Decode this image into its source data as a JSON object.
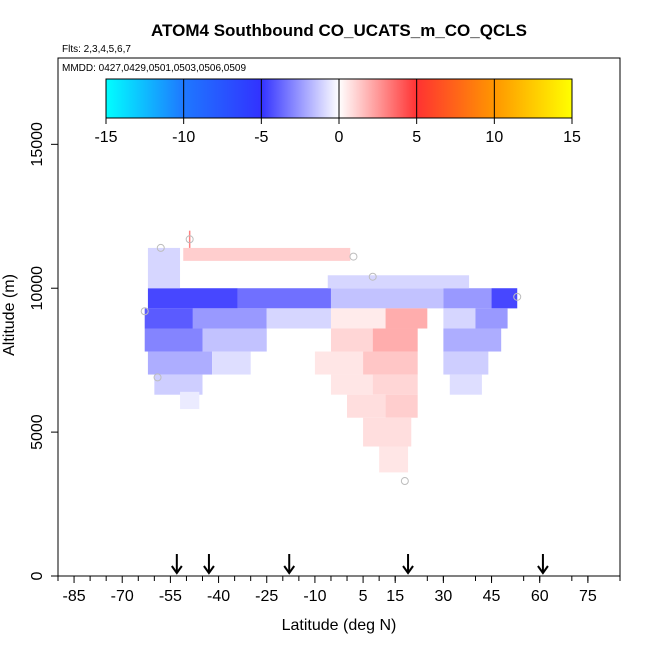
{
  "chart_data": {
    "type": "heatmap",
    "title": "ATOM4 Southbound CO_UCATS_m_CO_QCLS",
    "flights_label": "Flts: 2,3,4,5,6,7",
    "dates_label": "MMDD: 0427,0429,0501,0503,0506,0509",
    "xlabel": "Latitude (deg N)",
    "ylabel": "Altitude (m)",
    "xlim": [
      -90,
      85
    ],
    "ylim": [
      0,
      18000
    ],
    "x_ticks": [
      -85,
      -70,
      -55,
      -40,
      -25,
      -10,
      5,
      15,
      30,
      45,
      60,
      75
    ],
    "x_tick_labels": [
      "-85",
      "-70",
      "-55",
      "-40",
      "-25",
      "-10",
      "5",
      "15",
      "30",
      "45",
      "60",
      "75"
    ],
    "x_minor_step": 5,
    "y_ticks": [
      0,
      5000,
      10000,
      15000
    ],
    "y_tick_labels": [
      "0",
      "5000",
      "10000",
      "15000"
    ],
    "colorbar": {
      "min": -15,
      "max": 15,
      "ticks": [
        -15,
        -10,
        -5,
        0,
        5,
        10,
        15
      ],
      "tick_labels": [
        "-15",
        "-10",
        "-5",
        "0",
        "5",
        "10",
        "15"
      ],
      "color_stops": [
        {
          "value": -15,
          "color": "#00ffff"
        },
        {
          "value": -10,
          "color": "#1e78ff"
        },
        {
          "value": -5,
          "color": "#3232ff"
        },
        {
          "value": 0,
          "color": "#ffffff"
        },
        {
          "value": 5,
          "color": "#ff3232"
        },
        {
          "value": 10,
          "color": "#ff9600"
        },
        {
          "value": 15,
          "color": "#ffff00"
        }
      ]
    },
    "arrow_latitudes": [
      -53,
      -43,
      -18,
      19,
      61
    ],
    "cells": [
      {
        "lat0": -62,
        "lat1": -34,
        "alt0": 9300,
        "alt1": 10000,
        "value": -4.5
      },
      {
        "lat0": -34,
        "lat1": -5,
        "alt0": 9300,
        "alt1": 10000,
        "value": -3.5
      },
      {
        "lat0": -5,
        "lat1": 30,
        "alt0": 9300,
        "alt1": 10000,
        "value": -1.5
      },
      {
        "lat0": 30,
        "lat1": 45,
        "alt0": 9300,
        "alt1": 10000,
        "value": -2.5
      },
      {
        "lat0": 45,
        "lat1": 53,
        "alt0": 9300,
        "alt1": 10000,
        "value": -4.5
      },
      {
        "lat0": -6,
        "lat1": 38,
        "alt0": 10000,
        "alt1": 10450,
        "value": -1.0
      },
      {
        "lat0": -62,
        "lat1": -52,
        "alt0": 10000,
        "alt1": 11400,
        "value": -1.0
      },
      {
        "lat0": -51,
        "lat1": 1,
        "alt0": 10950,
        "alt1": 11400,
        "value": 1.2
      },
      {
        "lat0": -63,
        "lat1": -48,
        "alt0": 8600,
        "alt1": 9300,
        "value": -4.0
      },
      {
        "lat0": -48,
        "lat1": -25,
        "alt0": 8600,
        "alt1": 9300,
        "value": -2.5
      },
      {
        "lat0": -25,
        "lat1": -5,
        "alt0": 8600,
        "alt1": 9300,
        "value": -1.0
      },
      {
        "lat0": -5,
        "lat1": 12,
        "alt0": 8600,
        "alt1": 9300,
        "value": 0.5
      },
      {
        "lat0": 12,
        "lat1": 25,
        "alt0": 8600,
        "alt1": 9300,
        "value": 2.0
      },
      {
        "lat0": 30,
        "lat1": 40,
        "alt0": 8600,
        "alt1": 9300,
        "value": -1.0
      },
      {
        "lat0": 40,
        "lat1": 50,
        "alt0": 8600,
        "alt1": 9300,
        "value": -2.5
      },
      {
        "lat0": -63,
        "lat1": -45,
        "alt0": 7800,
        "alt1": 8600,
        "value": -3.0
      },
      {
        "lat0": -45,
        "lat1": -25,
        "alt0": 7800,
        "alt1": 8600,
        "value": -1.5
      },
      {
        "lat0": -5,
        "lat1": 8,
        "alt0": 7800,
        "alt1": 8600,
        "value": 1.0
      },
      {
        "lat0": 8,
        "lat1": 22,
        "alt0": 7800,
        "alt1": 8600,
        "value": 2.0
      },
      {
        "lat0": 30,
        "lat1": 48,
        "alt0": 7800,
        "alt1": 8600,
        "value": -2.0
      },
      {
        "lat0": -62,
        "lat1": -42,
        "alt0": 7000,
        "alt1": 7800,
        "value": -2.0
      },
      {
        "lat0": -42,
        "lat1": -30,
        "alt0": 7000,
        "alt1": 7800,
        "value": -0.8
      },
      {
        "lat0": -10,
        "lat1": 5,
        "alt0": 7000,
        "alt1": 7800,
        "value": 0.6
      },
      {
        "lat0": 5,
        "lat1": 22,
        "alt0": 7000,
        "alt1": 7800,
        "value": 1.4
      },
      {
        "lat0": 30,
        "lat1": 44,
        "alt0": 7000,
        "alt1": 7800,
        "value": -1.2
      },
      {
        "lat0": -60,
        "lat1": -45,
        "alt0": 6300,
        "alt1": 7000,
        "value": -1.2
      },
      {
        "lat0": -5,
        "lat1": 8,
        "alt0": 6300,
        "alt1": 7000,
        "value": 0.6
      },
      {
        "lat0": 8,
        "lat1": 22,
        "alt0": 6300,
        "alt1": 7000,
        "value": 1.0
      },
      {
        "lat0": 32,
        "lat1": 42,
        "alt0": 6300,
        "alt1": 7000,
        "value": -0.8
      },
      {
        "lat0": 0,
        "lat1": 12,
        "alt0": 5500,
        "alt1": 6300,
        "value": 0.8
      },
      {
        "lat0": 12,
        "lat1": 22,
        "alt0": 5500,
        "alt1": 6300,
        "value": 1.2
      },
      {
        "lat0": -52,
        "lat1": -46,
        "alt0": 5800,
        "alt1": 6400,
        "value": -0.5
      },
      {
        "lat0": 5,
        "lat1": 20,
        "alt0": 4500,
        "alt1": 5500,
        "value": 0.8
      },
      {
        "lat0": 10,
        "lat1": 19,
        "alt0": 3600,
        "alt1": 4500,
        "value": 0.6
      }
    ],
    "markers": [
      {
        "lat": -58,
        "alt": 11400
      },
      {
        "lat": -49,
        "alt": 11700
      },
      {
        "lat": 2,
        "alt": 11100
      },
      {
        "lat": 8,
        "alt": 10400
      },
      {
        "lat": 53,
        "alt": 9700
      },
      {
        "lat": -63,
        "alt": 9200
      },
      {
        "lat": -59,
        "alt": 6900
      },
      {
        "lat": 18,
        "alt": 3300
      }
    ],
    "spike": {
      "lat": -49,
      "alt0": 11400,
      "alt1": 12000
    }
  }
}
